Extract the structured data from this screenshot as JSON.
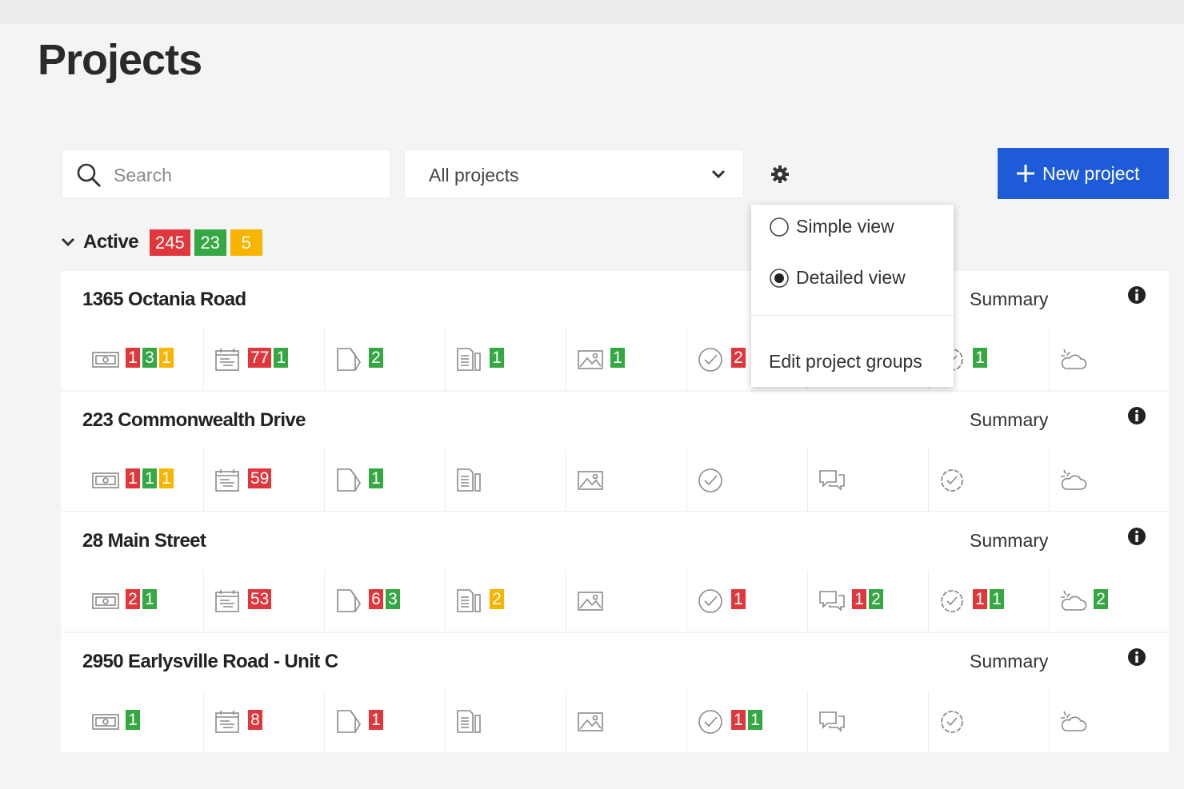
{
  "header": {
    "title": "Projects"
  },
  "toolbar": {
    "search_placeholder": "Search",
    "filter": "All projects",
    "new_button": "New project"
  },
  "view_menu": {
    "options": [
      "Simple view",
      "Detailed view"
    ],
    "selected": 1,
    "edit": "Edit project groups"
  },
  "groups": [
    {
      "name": "Active",
      "counts": [
        {
          "value": 245,
          "status": "red"
        },
        {
          "value": 23,
          "status": "green"
        },
        {
          "value": 5,
          "status": "yellow"
        }
      ],
      "projects": [
        {
          "name": "1365 Octania Road",
          "summary": "Summary",
          "cells": [
            [
              {
                "value": 1,
                "status": "red"
              },
              {
                "value": 3,
                "status": "green"
              },
              {
                "value": 1,
                "status": "yellow"
              }
            ],
            [
              {
                "value": 77,
                "status": "red"
              },
              {
                "value": 1,
                "status": "green"
              }
            ],
            [
              {
                "value": 2,
                "status": "green"
              }
            ],
            [
              {
                "value": 1,
                "status": "green"
              }
            ],
            [
              {
                "value": 1,
                "status": "green"
              }
            ],
            [
              {
                "value": 2,
                "status": "red"
              }
            ],
            [],
            [
              {
                "value": 1,
                "status": "green"
              }
            ],
            []
          ]
        },
        {
          "name": "223 Commonwealth Drive",
          "summary": "Summary",
          "cells": [
            [
              {
                "value": 1,
                "status": "red"
              },
              {
                "value": 1,
                "status": "green"
              },
              {
                "value": 1,
                "status": "yellow"
              }
            ],
            [
              {
                "value": 59,
                "status": "red"
              }
            ],
            [
              {
                "value": 1,
                "status": "green"
              }
            ],
            [],
            [],
            [],
            [],
            [],
            []
          ]
        },
        {
          "name": "28 Main Street",
          "summary": "Summary",
          "cells": [
            [
              {
                "value": 2,
                "status": "red"
              },
              {
                "value": 1,
                "status": "green"
              }
            ],
            [
              {
                "value": 53,
                "status": "red"
              }
            ],
            [
              {
                "value": 6,
                "status": "red"
              },
              {
                "value": 3,
                "status": "green"
              }
            ],
            [
              {
                "value": 2,
                "status": "yellow"
              }
            ],
            [],
            [
              {
                "value": 1,
                "status": "red"
              }
            ],
            [
              {
                "value": 1,
                "status": "red"
              },
              {
                "value": 2,
                "status": "green"
              }
            ],
            [
              {
                "value": 1,
                "status": "red"
              },
              {
                "value": 1,
                "status": "green"
              }
            ],
            [
              {
                "value": 2,
                "status": "green"
              }
            ]
          ]
        },
        {
          "name": "2950 Earlysville Road - Unit C",
          "summary": "Summary",
          "cells": [
            [
              {
                "value": 1,
                "status": "green"
              }
            ],
            [
              {
                "value": 8,
                "status": "red"
              }
            ],
            [
              {
                "value": 1,
                "status": "red"
              }
            ],
            [],
            [],
            [
              {
                "value": 1,
                "status": "red"
              },
              {
                "value": 1,
                "status": "green"
              }
            ],
            [],
            [],
            []
          ]
        }
      ]
    }
  ]
}
